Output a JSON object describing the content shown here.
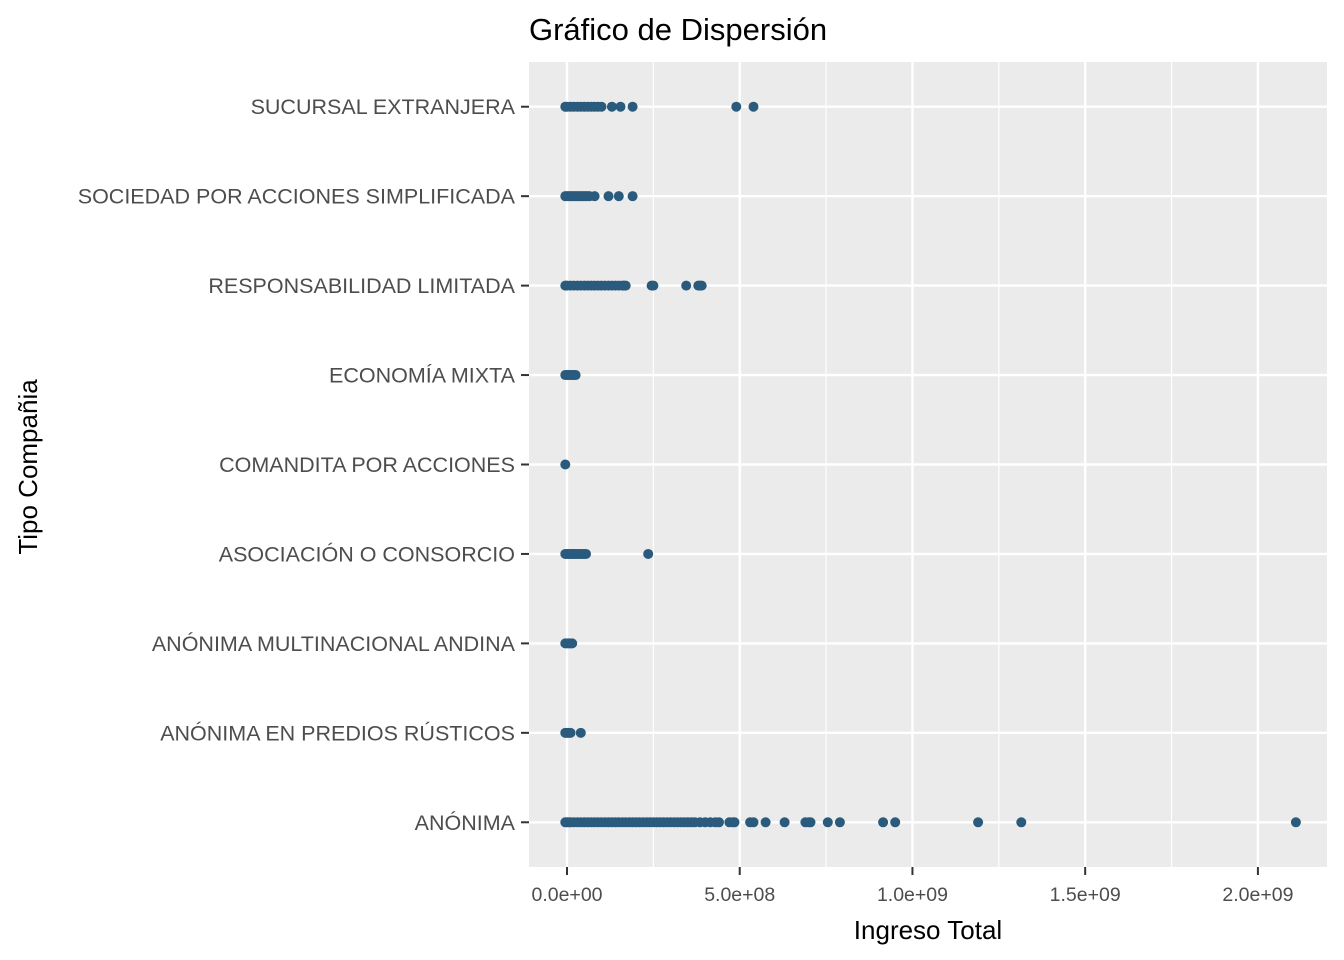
{
  "chart_data": {
    "type": "scatter",
    "title": "Gráfico de Dispersión",
    "xlabel": "Ingreso Total",
    "ylabel": "Tipo Compañia",
    "xlim": [
      -110000000,
      2200000000
    ],
    "x_ticks": [
      0,
      500000000,
      1000000000,
      1500000000,
      2000000000
    ],
    "x_tick_labels": [
      "0.0e+00",
      "5.0e+08",
      "1.0e+09",
      "1.5e+09",
      "2.0e+09"
    ],
    "grid": true,
    "point_color": "#2a5a7c",
    "panel_color": "#ebebeb",
    "grid_color": "#ffffff",
    "categories": [
      "ANÓNIMA",
      "ANÓNIMA  EN PREDIOS RÚSTICOS",
      "ANÓNIMA MULTINACIONAL ANDINA",
      "ASOCIACIÓN O CONSORCIO",
      "COMANDITA POR ACCIONES",
      "ECONOMÍA MIXTA",
      "RESPONSABILIDAD LIMITADA",
      "SOCIEDAD POR ACCIONES SIMPLIFICADA",
      "SUCURSAL  EXTRANJERA"
    ],
    "points": [
      {
        "category": "ANÓNIMA",
        "x": [
          -5000000,
          0,
          5000000,
          10000000,
          20000000,
          30000000,
          40000000,
          50000000,
          60000000,
          70000000,
          80000000,
          90000000,
          100000000,
          110000000,
          120000000,
          130000000,
          140000000,
          150000000,
          160000000,
          170000000,
          180000000,
          190000000,
          200000000,
          210000000,
          220000000,
          230000000,
          240000000,
          250000000,
          260000000,
          270000000,
          280000000,
          290000000,
          300000000,
          310000000,
          320000000,
          330000000,
          340000000,
          350000000,
          360000000,
          370000000,
          385000000,
          400000000,
          415000000,
          430000000,
          440000000,
          470000000,
          480000000,
          485000000,
          530000000,
          540000000,
          575000000,
          630000000,
          690000000,
          700000000,
          705000000,
          755000000,
          790000000,
          915000000,
          950000000,
          1190000000,
          1315000000,
          2110000000
        ]
      },
      {
        "category": "ANÓNIMA  EN PREDIOS RÚSTICOS",
        "x": [
          -5000000,
          0,
          5000000,
          10000000,
          40000000
        ]
      },
      {
        "category": "ANÓNIMA MULTINACIONAL ANDINA",
        "x": [
          -5000000,
          0,
          5000000,
          10000000,
          15000000
        ]
      },
      {
        "category": "ASOCIACIÓN O CONSORCIO",
        "x": [
          -5000000,
          0,
          5000000,
          10000000,
          15000000,
          20000000,
          25000000,
          30000000,
          35000000,
          40000000,
          45000000,
          50000000,
          55000000,
          235000000
        ]
      },
      {
        "category": "COMANDITA POR ACCIONES",
        "x": [
          -5000000
        ]
      },
      {
        "category": "ECONOMÍA MIXTA",
        "x": [
          -5000000,
          0,
          5000000,
          10000000,
          15000000,
          20000000,
          25000000
        ]
      },
      {
        "category": "RESPONSABILIDAD LIMITADA",
        "x": [
          -5000000,
          0,
          10000000,
          20000000,
          30000000,
          40000000,
          50000000,
          60000000,
          70000000,
          80000000,
          90000000,
          100000000,
          110000000,
          120000000,
          130000000,
          140000000,
          150000000,
          160000000,
          165000000,
          170000000,
          245000000,
          250000000,
          345000000,
          380000000,
          385000000,
          390000000
        ]
      },
      {
        "category": "SOCIEDAD POR ACCIONES SIMPLIFICADA",
        "x": [
          -5000000,
          0,
          5000000,
          10000000,
          15000000,
          20000000,
          25000000,
          30000000,
          35000000,
          40000000,
          45000000,
          50000000,
          55000000,
          60000000,
          65000000,
          80000000,
          120000000,
          150000000,
          190000000
        ]
      },
      {
        "category": "SUCURSAL  EXTRANJERA",
        "x": [
          -5000000,
          0,
          10000000,
          20000000,
          30000000,
          40000000,
          50000000,
          60000000,
          70000000,
          80000000,
          90000000,
          100000000,
          130000000,
          155000000,
          190000000,
          490000000,
          540000000
        ]
      }
    ]
  }
}
